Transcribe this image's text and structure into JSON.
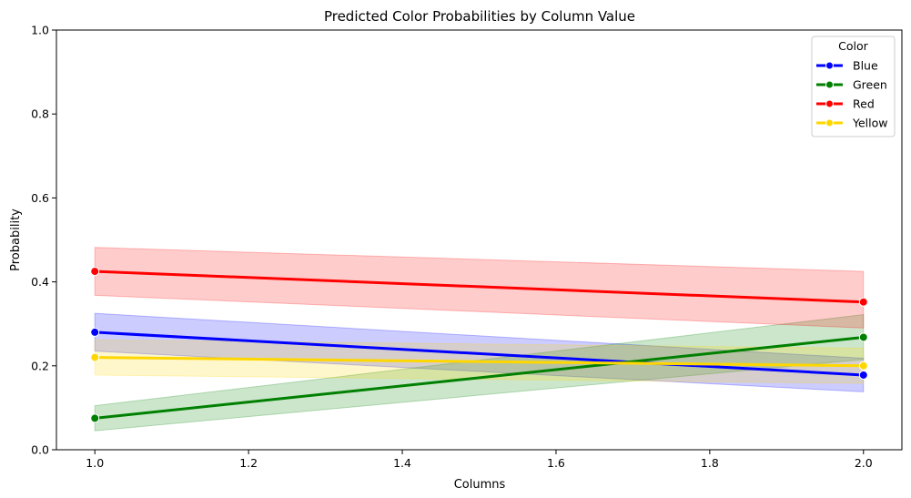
{
  "chart_data": {
    "type": "line",
    "title": "Predicted Color Probabilities by Column Value",
    "xlabel": "Columns",
    "ylabel": "Probability",
    "xlim": [
      0.95,
      2.05
    ],
    "ylim": [
      0.0,
      1.0
    ],
    "xticks": [
      "1.0",
      "1.2",
      "1.4",
      "1.6",
      "1.8",
      "2.0"
    ],
    "yticks": [
      "0.0",
      "0.2",
      "0.4",
      "0.6",
      "0.8",
      "1.0"
    ],
    "grid": false,
    "legend": {
      "title": "Color",
      "placement": "top-right"
    },
    "x": [
      1.0,
      2.0
    ],
    "series": [
      {
        "name": "Blue",
        "color": "#0000ff",
        "values": [
          0.28,
          0.178
        ],
        "ci_low": [
          0.235,
          0.138
        ],
        "ci_high": [
          0.325,
          0.218
        ]
      },
      {
        "name": "Green",
        "color": "#008000",
        "values": [
          0.075,
          0.268
        ],
        "ci_low": [
          0.045,
          0.215
        ],
        "ci_high": [
          0.105,
          0.322
        ]
      },
      {
        "name": "Red",
        "color": "#ff0000",
        "values": [
          0.425,
          0.352
        ],
        "ci_low": [
          0.368,
          0.29
        ],
        "ci_high": [
          0.482,
          0.425
        ]
      },
      {
        "name": "Yellow",
        "color": "#ffd700",
        "values": [
          0.22,
          0.2
        ],
        "ci_low": [
          0.178,
          0.158
        ],
        "ci_high": [
          0.262,
          0.242
        ]
      }
    ]
  }
}
